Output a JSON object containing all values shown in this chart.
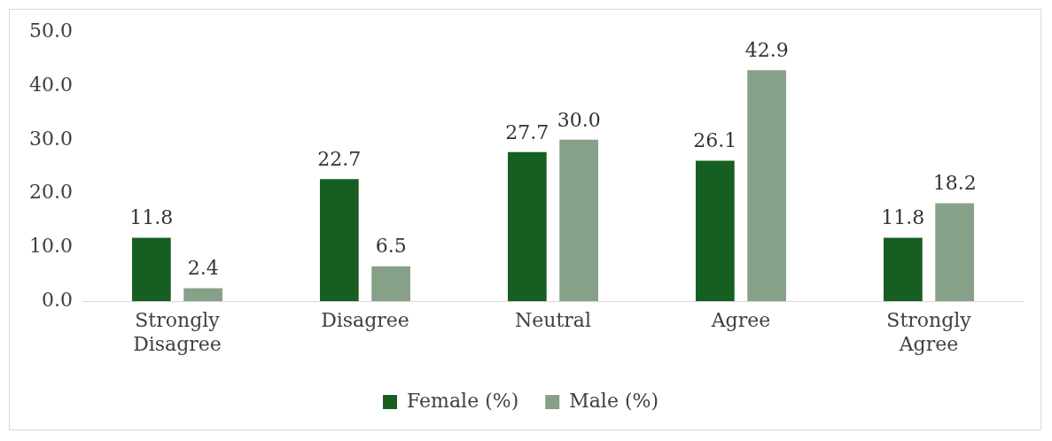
{
  "chart_data": {
    "type": "bar",
    "categories": [
      "Strongly Disagree",
      "Disagree",
      "Neutral",
      "Agree",
      "Strongly Agree"
    ],
    "series": [
      {
        "name": "Female (%)",
        "color": "#165e22",
        "values": [
          11.8,
          22.7,
          27.7,
          26.1,
          11.8
        ]
      },
      {
        "name": "Male (%)",
        "color": "#87a088",
        "values": [
          2.4,
          6.5,
          30.0,
          42.9,
          18.2
        ]
      }
    ],
    "ylim": [
      0,
      50
    ],
    "yticks": [
      {
        "value": 0,
        "label": "0.0"
      },
      {
        "value": 10,
        "label": "10.0"
      },
      {
        "value": 20,
        "label": "20.0"
      },
      {
        "value": 30,
        "label": "30.0"
      },
      {
        "value": 40,
        "label": "40.0"
      },
      {
        "value": 50,
        "label": "50.0"
      }
    ],
    "value_labels": [
      [
        "11.8",
        "22.7",
        "27.7",
        "26.1",
        "11.8"
      ],
      [
        "2.4",
        "6.5",
        "30.0",
        "42.9",
        "18.2"
      ]
    ],
    "grid": false,
    "legend": "bottom"
  }
}
